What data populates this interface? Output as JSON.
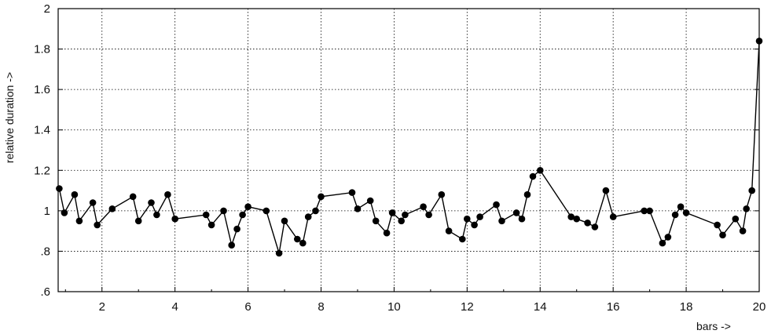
{
  "chart_data": {
    "type": "line",
    "xlabel": "bars ->",
    "ylabel": "relative duration ->",
    "xlim": [
      0.8,
      20
    ],
    "ylim": [
      0.6,
      2.0
    ],
    "x_ticks": [
      2,
      4,
      6,
      8,
      10,
      12,
      14,
      16,
      18,
      20
    ],
    "x_tick_labels": [
      "2",
      "4",
      "6",
      "8",
      "10",
      "12",
      "14",
      "16",
      "18",
      "20"
    ],
    "y_ticks": [
      0.6,
      0.8,
      1.0,
      1.2,
      1.4,
      1.6,
      1.8,
      2.0
    ],
    "y_tick_labels": [
      ".6",
      ".8",
      "1",
      "1.2",
      "1.4",
      "1.6",
      "1.8",
      "2"
    ],
    "grid": true,
    "marker": "filled-circle",
    "line_color": "#000000",
    "series": [
      {
        "x": [
          0.83,
          0.97,
          1.25,
          1.38,
          1.75,
          1.87,
          2.28,
          2.85,
          3.0,
          3.35,
          3.5,
          3.8,
          4.0,
          4.85,
          5.0,
          5.33,
          5.55,
          5.7,
          5.85,
          6.0,
          6.5,
          6.85,
          7.0,
          7.35,
          7.5,
          7.65,
          7.85,
          8.0,
          8.85,
          9.0,
          9.35,
          9.5,
          9.8,
          9.95,
          10.2,
          10.3,
          10.8,
          10.95,
          11.3,
          11.5,
          11.87,
          12.0,
          12.2,
          12.35,
          12.8,
          12.95,
          13.35,
          13.5,
          13.65,
          13.8,
          14.0,
          14.85,
          15.0,
          15.3,
          15.5,
          15.8,
          16.0,
          16.85,
          17.0,
          17.35,
          17.5,
          17.7,
          17.85,
          18.0,
          18.85,
          19.0,
          19.35,
          19.55,
          19.65,
          19.8,
          20.0
        ],
        "y": [
          1.11,
          0.99,
          1.08,
          0.95,
          1.04,
          0.93,
          1.01,
          1.07,
          0.95,
          1.04,
          0.98,
          1.08,
          0.96,
          0.98,
          0.93,
          1.0,
          0.83,
          0.91,
          0.98,
          1.02,
          1.0,
          0.79,
          0.95,
          0.86,
          0.84,
          0.97,
          1.0,
          1.07,
          1.09,
          1.01,
          1.05,
          0.95,
          0.89,
          0.99,
          0.95,
          0.98,
          1.02,
          0.98,
          1.08,
          0.9,
          0.86,
          0.96,
          0.93,
          0.97,
          1.03,
          0.95,
          0.99,
          0.96,
          1.08,
          1.17,
          1.2,
          0.97,
          0.96,
          0.94,
          0.92,
          1.1,
          0.97,
          1.0,
          1.0,
          0.84,
          0.87,
          0.98,
          1.02,
          0.99,
          0.93,
          0.88,
          0.96,
          0.9,
          1.01,
          1.1,
          1.84
        ]
      }
    ]
  }
}
